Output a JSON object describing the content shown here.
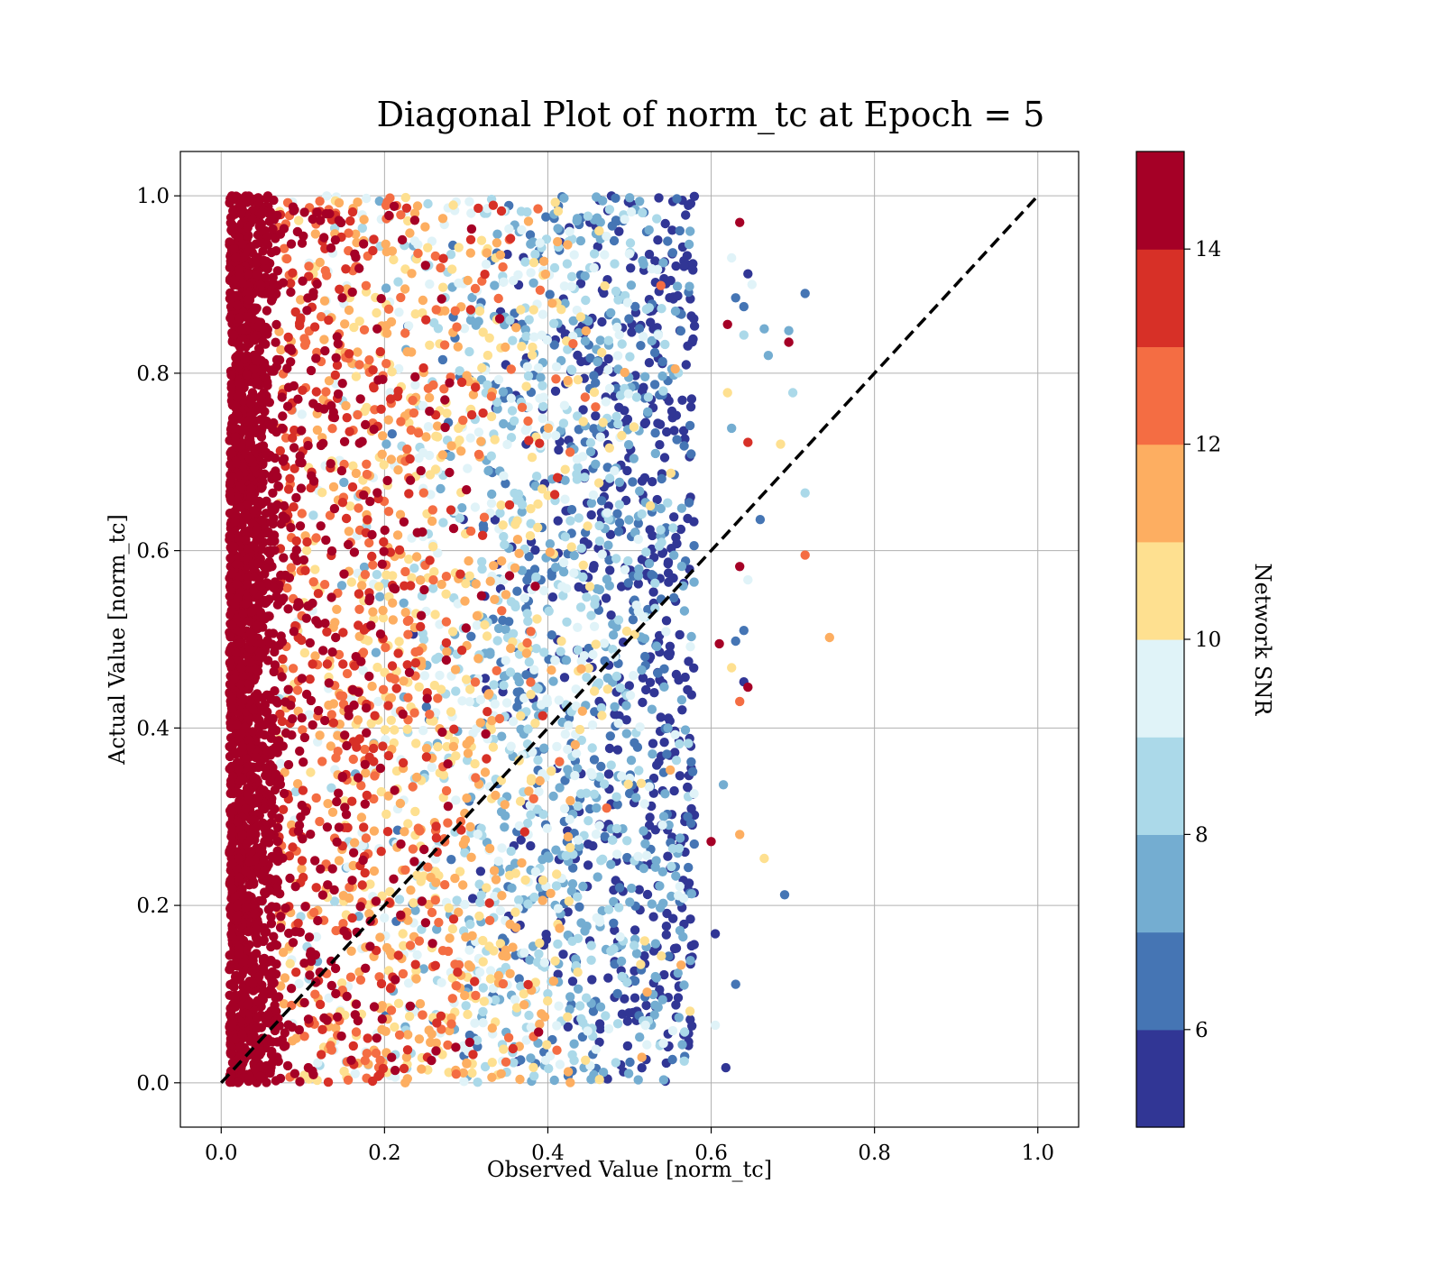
{
  "chart_data": {
    "type": "scatter",
    "title": "Diagonal Plot of norm_tc at Epoch = 5",
    "xlabel": "Observed Value [norm_tc]",
    "ylabel": "Actual Value [norm_tc]",
    "xlim": [
      -0.05,
      1.05
    ],
    "ylim": [
      -0.05,
      1.05
    ],
    "xticks": [
      0.0,
      0.2,
      0.4,
      0.6,
      0.8,
      1.0
    ],
    "yticks": [
      0.0,
      0.2,
      0.4,
      0.6,
      0.8,
      1.0
    ],
    "xtick_labels": [
      "0.0",
      "0.2",
      "0.4",
      "0.6",
      "0.8",
      "1.0"
    ],
    "ytick_labels": [
      "0.0",
      "0.2",
      "0.4",
      "0.6",
      "0.8",
      "1.0"
    ],
    "grid": true,
    "reference_line": {
      "x": [
        0.0,
        1.0
      ],
      "y": [
        0.0,
        1.0
      ],
      "style": "dashed",
      "color": "#000000"
    },
    "colorbar": {
      "label": "Network SNR",
      "range": [
        5,
        15
      ],
      "ticks": [
        6,
        8,
        10,
        12,
        14
      ],
      "tick_labels": [
        "6",
        "8",
        "10",
        "12",
        "14"
      ],
      "colors": [
        "#313695",
        "#4575b4",
        "#74add1",
        "#abd9e9",
        "#e0f3f8",
        "#fee090",
        "#fdae61",
        "#f46d43",
        "#d73027",
        "#a50026"
      ]
    },
    "point_cloud": {
      "x_range": [
        0.01,
        0.58
      ],
      "y_range": [
        0.0,
        1.0
      ],
      "snr_trend": "high SNR near x≈0.02–0.08, decreasing to low SNR near x≈0.58"
    },
    "outliers": [
      {
        "x": 0.715,
        "y": 0.89,
        "snr": 6.5
      },
      {
        "x": 0.695,
        "y": 0.848,
        "snr": 7.5
      },
      {
        "x": 0.695,
        "y": 0.835,
        "snr": 14.5
      },
      {
        "x": 0.665,
        "y": 0.85,
        "snr": 7.5
      },
      {
        "x": 0.67,
        "y": 0.82,
        "snr": 7.5
      },
      {
        "x": 0.64,
        "y": 0.875,
        "snr": 6.5
      },
      {
        "x": 0.63,
        "y": 0.885,
        "snr": 6.5
      },
      {
        "x": 0.645,
        "y": 0.912,
        "snr": 5.5
      },
      {
        "x": 0.625,
        "y": 0.93,
        "snr": 9.5
      },
      {
        "x": 0.65,
        "y": 0.9,
        "snr": 9.5
      },
      {
        "x": 0.635,
        "y": 0.97,
        "snr": 14.5
      },
      {
        "x": 0.62,
        "y": 0.855,
        "snr": 14.5
      },
      {
        "x": 0.64,
        "y": 0.843,
        "snr": 8.5
      },
      {
        "x": 0.7,
        "y": 0.778,
        "snr": 8.5
      },
      {
        "x": 0.62,
        "y": 0.778,
        "snr": 10.5
      },
      {
        "x": 0.625,
        "y": 0.738,
        "snr": 7.5
      },
      {
        "x": 0.645,
        "y": 0.722,
        "snr": 13.5
      },
      {
        "x": 0.685,
        "y": 0.72,
        "snr": 10.5
      },
      {
        "x": 0.715,
        "y": 0.665,
        "snr": 8.5
      },
      {
        "x": 0.66,
        "y": 0.635,
        "snr": 6.5
      },
      {
        "x": 0.635,
        "y": 0.582,
        "snr": 14.5
      },
      {
        "x": 0.645,
        "y": 0.567,
        "snr": 9.5
      },
      {
        "x": 0.715,
        "y": 0.595,
        "snr": 12.5
      },
      {
        "x": 0.745,
        "y": 0.502,
        "snr": 11.5
      },
      {
        "x": 0.64,
        "y": 0.51,
        "snr": 6.5
      },
      {
        "x": 0.63,
        "y": 0.498,
        "snr": 6.5
      },
      {
        "x": 0.625,
        "y": 0.468,
        "snr": 10.5
      },
      {
        "x": 0.64,
        "y": 0.452,
        "snr": 5.5
      },
      {
        "x": 0.645,
        "y": 0.446,
        "snr": 14.5
      },
      {
        "x": 0.635,
        "y": 0.43,
        "snr": 12.5
      },
      {
        "x": 0.615,
        "y": 0.336,
        "snr": 7.5
      },
      {
        "x": 0.635,
        "y": 0.28,
        "snr": 11.5
      },
      {
        "x": 0.665,
        "y": 0.253,
        "snr": 10.5
      },
      {
        "x": 0.69,
        "y": 0.212,
        "snr": 6.5
      },
      {
        "x": 0.63,
        "y": 0.111,
        "snr": 6.5
      },
      {
        "x": 0.605,
        "y": 0.065,
        "snr": 9.5
      },
      {
        "x": 0.618,
        "y": 0.017,
        "snr": 5.5
      },
      {
        "x": 0.605,
        "y": 0.168,
        "snr": 5.5
      },
      {
        "x": 0.6,
        "y": 0.272,
        "snr": 14.5
      },
      {
        "x": 0.61,
        "y": 0.495,
        "snr": 14.5
      }
    ]
  }
}
